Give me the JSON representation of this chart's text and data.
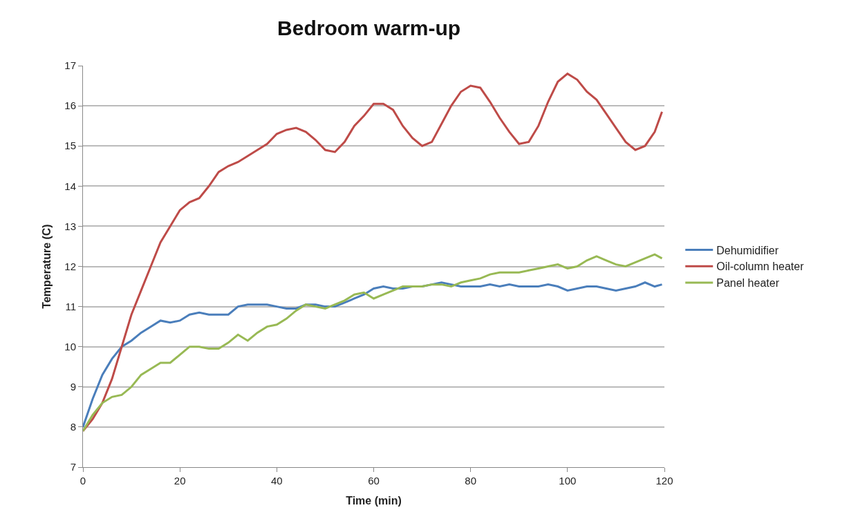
{
  "chart_data": {
    "type": "line",
    "title": "Bedroom warm-up",
    "xlabel": "Time (min)",
    "ylabel": "Temperature (C)",
    "x": [
      0,
      2,
      4,
      6,
      8,
      10,
      12,
      14,
      16,
      18,
      20,
      22,
      24,
      26,
      28,
      30,
      32,
      34,
      36,
      38,
      40,
      42,
      44,
      46,
      48,
      50,
      52,
      54,
      56,
      58,
      60,
      62,
      64,
      66,
      68,
      70,
      72,
      74,
      76,
      78,
      80,
      82,
      84,
      86,
      88,
      90,
      92,
      94,
      96,
      98,
      100,
      102,
      104,
      106,
      108,
      110,
      112,
      114,
      116,
      118,
      119.5
    ],
    "series": [
      {
        "name": "Dehumidifier",
        "color": "#4a7ebb",
        "values": [
          8.0,
          8.7,
          9.3,
          9.7,
          10.0,
          10.15,
          10.35,
          10.5,
          10.65,
          10.6,
          10.65,
          10.8,
          10.85,
          10.8,
          10.8,
          10.8,
          11.0,
          11.05,
          11.05,
          11.05,
          11.0,
          10.95,
          10.95,
          11.05,
          11.05,
          11.0,
          11.0,
          11.1,
          11.2,
          11.3,
          11.45,
          11.5,
          11.45,
          11.45,
          11.5,
          11.5,
          11.55,
          11.6,
          11.55,
          11.5,
          11.5,
          11.5,
          11.55,
          11.5,
          11.55,
          11.5,
          11.5,
          11.5,
          11.55,
          11.5,
          11.4,
          11.45,
          11.5,
          11.5,
          11.45,
          11.4,
          11.45,
          11.5,
          11.6,
          11.5,
          11.55
        ]
      },
      {
        "name": "Oil-column heater",
        "color": "#be4b48",
        "values": [
          7.9,
          8.2,
          8.6,
          9.2,
          10.0,
          10.8,
          11.4,
          12.0,
          12.6,
          13.0,
          13.4,
          13.6,
          13.7,
          14.0,
          14.35,
          14.5,
          14.6,
          14.75,
          14.9,
          15.05,
          15.3,
          15.4,
          15.45,
          15.35,
          15.15,
          14.9,
          14.85,
          15.1,
          15.5,
          15.75,
          16.05,
          16.05,
          15.9,
          15.5,
          15.2,
          15.0,
          15.1,
          15.55,
          16.0,
          16.35,
          16.5,
          16.45,
          16.1,
          15.7,
          15.35,
          15.05,
          15.1,
          15.5,
          16.1,
          16.6,
          16.8,
          16.65,
          16.35,
          16.15,
          15.8,
          15.45,
          15.1,
          14.9,
          15.0,
          15.35,
          15.85
        ]
      },
      {
        "name": "Panel heater",
        "color": "#98b954",
        "values": [
          7.9,
          8.3,
          8.6,
          8.75,
          8.8,
          9.0,
          9.3,
          9.45,
          9.6,
          9.6,
          9.8,
          10.0,
          10.0,
          9.95,
          9.95,
          10.1,
          10.3,
          10.15,
          10.35,
          10.5,
          10.55,
          10.7,
          10.9,
          11.05,
          11.0,
          10.95,
          11.05,
          11.15,
          11.3,
          11.35,
          11.2,
          11.3,
          11.4,
          11.5,
          11.5,
          11.5,
          11.55,
          11.55,
          11.5,
          11.6,
          11.65,
          11.7,
          11.8,
          11.85,
          11.85,
          11.85,
          11.9,
          11.95,
          12.0,
          12.05,
          11.95,
          12.0,
          12.15,
          12.25,
          12.15,
          12.05,
          12.0,
          12.1,
          12.2,
          12.3,
          12.2
        ]
      }
    ],
    "xlim": [
      0,
      120
    ],
    "xticks": [
      0,
      20,
      40,
      60,
      80,
      100,
      120
    ],
    "ylim": [
      7,
      17
    ],
    "yticks": [
      7,
      8,
      9,
      10,
      11,
      12,
      13,
      14,
      15,
      16,
      17
    ],
    "grid": "y",
    "legend": "right",
    "marker": "none",
    "line_style": "solid"
  }
}
